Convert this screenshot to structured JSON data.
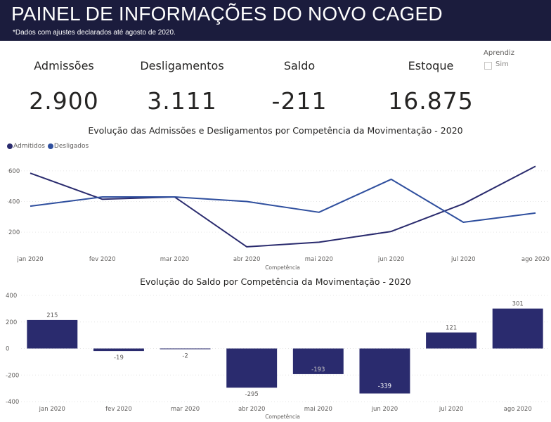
{
  "header": {
    "title": "PAINEL DE INFORMAÇÕES DO NOVO CAGED",
    "subtitle": "*Dados com ajustes declarados até agosto de 2020."
  },
  "kpis": [
    {
      "label": "Admissões",
      "value": "2.900"
    },
    {
      "label": "Desligamentos",
      "value": "3.111"
    },
    {
      "label": "Saldo",
      "value": "-211"
    },
    {
      "label": "Estoque",
      "value": "16.875"
    }
  ],
  "slicer": {
    "title": "Aprendiz",
    "option": "Sim"
  },
  "colors": {
    "header_bg": "#1b1c3d",
    "admitidos": "#2a2b6e",
    "desligados": "#2f4f9e",
    "bars": "#2a2b6e"
  },
  "chart_data": [
    {
      "type": "line",
      "title": "Evolução das Admissões e Desligamentos por Competência da Movimentação - 2020",
      "xlabel": "Competência",
      "ylabel": "",
      "categories": [
        "jan 2020",
        "fev 2020",
        "mar 2020",
        "abr 2020",
        "mai 2020",
        "jun 2020",
        "jul 2020",
        "ago 2020"
      ],
      "yticks": [
        200,
        400,
        600
      ],
      "ylim": [
        100,
        650
      ],
      "legend_position": "top-left",
      "grid": true,
      "series": [
        {
          "name": "Admitidos",
          "color": "#2a2b6e",
          "values": [
            585,
            415,
            430,
            105,
            135,
            205,
            385,
            630
          ]
        },
        {
          "name": "Desligados",
          "color": "#2f4f9e",
          "values": [
            370,
            430,
            430,
            400,
            330,
            545,
            265,
            325
          ]
        }
      ]
    },
    {
      "type": "bar",
      "title": "Evolução do Saldo por Competência da Movimentação - 2020",
      "xlabel": "Competência",
      "ylabel": "",
      "categories": [
        "jan 2020",
        "fev 2020",
        "mar 2020",
        "abr 2020",
        "mai 2020",
        "jun 2020",
        "jul 2020",
        "ago 2020"
      ],
      "values": [
        215,
        -19,
        -2,
        -295,
        -193,
        -339,
        121,
        301
      ],
      "labels": [
        "215",
        "-19",
        "-2",
        "-295",
        "-193",
        "-339",
        "121",
        "301"
      ],
      "yticks": [
        -400,
        -200,
        0,
        200,
        400
      ],
      "ylim": [
        -400,
        400
      ],
      "grid": true
    }
  ]
}
